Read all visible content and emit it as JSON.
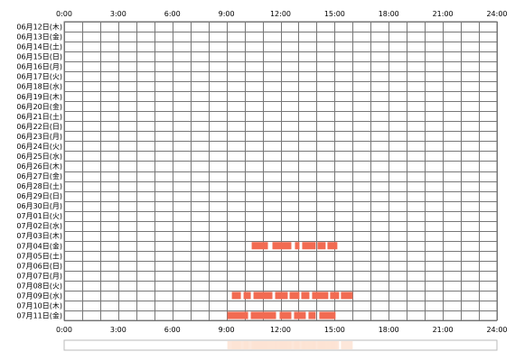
{
  "chart_data": {
    "type": "timeline",
    "x_unit": "hour",
    "xlim": [
      0,
      24
    ],
    "x_ticks": [
      "0:00",
      "3:00",
      "6:00",
      "9:00",
      "12:00",
      "15:00",
      "18:00",
      "21:00",
      "24:00"
    ],
    "grid": true,
    "bar_color": "#f26b52",
    "grid_color": "#777777",
    "summary_color": "#fde3d4",
    "rows": [
      {
        "label": "06月12日(木)",
        "segments": []
      },
      {
        "label": "06月13日(金)",
        "segments": []
      },
      {
        "label": "06月14日(土)",
        "segments": []
      },
      {
        "label": "06月15日(日)",
        "segments": []
      },
      {
        "label": "06月16日(月)",
        "segments": []
      },
      {
        "label": "06月17日(火)",
        "segments": []
      },
      {
        "label": "06月18日(水)",
        "segments": []
      },
      {
        "label": "06月19日(木)",
        "segments": []
      },
      {
        "label": "06月20日(金)",
        "segments": []
      },
      {
        "label": "06月21日(土)",
        "segments": []
      },
      {
        "label": "06月22日(日)",
        "segments": []
      },
      {
        "label": "06月23日(月)",
        "segments": []
      },
      {
        "label": "06月24日(火)",
        "segments": []
      },
      {
        "label": "06月25日(水)",
        "segments": []
      },
      {
        "label": "06月26日(木)",
        "segments": []
      },
      {
        "label": "06月27日(金)",
        "segments": []
      },
      {
        "label": "06月28日(土)",
        "segments": []
      },
      {
        "label": "06月29日(日)",
        "segments": []
      },
      {
        "label": "06月30日(月)",
        "segments": []
      },
      {
        "label": "07月01日(火)",
        "segments": []
      },
      {
        "label": "07月02日(水)",
        "segments": []
      },
      {
        "label": "07月03日(木)",
        "segments": []
      },
      {
        "label": "07月04日(金)",
        "segments": [
          [
            10.4,
            11.3
          ],
          [
            11.55,
            12.6
          ],
          [
            12.8,
            13.05
          ],
          [
            13.2,
            13.95
          ],
          [
            14.05,
            14.5
          ],
          [
            14.6,
            15.15
          ]
        ]
      },
      {
        "label": "07月05日(土)",
        "segments": []
      },
      {
        "label": "07月06日(日)",
        "segments": []
      },
      {
        "label": "07月07日(月)",
        "segments": []
      },
      {
        "label": "07月08日(火)",
        "segments": []
      },
      {
        "label": "07月09日(水)",
        "segments": [
          [
            9.3,
            9.8
          ],
          [
            9.95,
            10.35
          ],
          [
            10.5,
            11.55
          ],
          [
            11.7,
            12.4
          ],
          [
            12.5,
            13.05
          ],
          [
            13.15,
            13.6
          ],
          [
            13.75,
            14.65
          ],
          [
            14.75,
            15.25
          ],
          [
            15.35,
            16.0
          ]
        ]
      },
      {
        "label": "07月10日(木)",
        "segments": []
      },
      {
        "label": "07月11日(金)",
        "segments": [
          [
            9.05,
            10.2
          ],
          [
            10.35,
            11.75
          ],
          [
            11.95,
            12.6
          ],
          [
            12.75,
            13.4
          ],
          [
            13.55,
            13.95
          ],
          [
            14.15,
            15.05
          ]
        ]
      }
    ]
  }
}
